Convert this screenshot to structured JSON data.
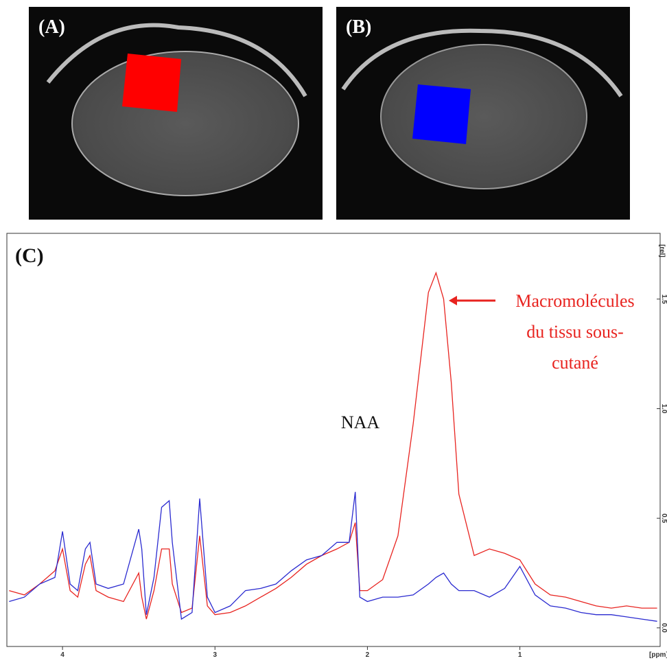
{
  "panels": [
    {
      "label": "(A)",
      "roi_color": "#ff0000"
    },
    {
      "label": "(B)",
      "roi_color": "#0000ff"
    }
  ],
  "chart_data": {
    "type": "line",
    "panel_label": "(C)",
    "xlabel": "[ppm]",
    "ylabel": "[rel]",
    "x": [
      4.35,
      4.25,
      4.15,
      4.05,
      4.0,
      3.95,
      3.9,
      3.85,
      3.82,
      3.78,
      3.7,
      3.6,
      3.5,
      3.48,
      3.45,
      3.4,
      3.35,
      3.3,
      3.28,
      3.22,
      3.15,
      3.1,
      3.05,
      3.0,
      2.9,
      2.8,
      2.7,
      2.6,
      2.5,
      2.4,
      2.3,
      2.2,
      2.12,
      2.08,
      2.05,
      2.0,
      1.9,
      1.8,
      1.7,
      1.6,
      1.55,
      1.5,
      1.45,
      1.4,
      1.3,
      1.2,
      1.1,
      1.0,
      0.9,
      0.8,
      0.7,
      0.6,
      0.5,
      0.4,
      0.3,
      0.2,
      0.1
    ],
    "series": [
      {
        "color": "#e8231f",
        "values": [
          0.17,
          0.15,
          0.2,
          0.26,
          0.36,
          0.17,
          0.14,
          0.29,
          0.33,
          0.17,
          0.14,
          0.12,
          0.25,
          0.14,
          0.04,
          0.17,
          0.36,
          0.36,
          0.2,
          0.07,
          0.09,
          0.42,
          0.1,
          0.06,
          0.07,
          0.1,
          0.14,
          0.18,
          0.23,
          0.29,
          0.33,
          0.36,
          0.39,
          0.48,
          0.17,
          0.17,
          0.22,
          0.42,
          0.93,
          1.53,
          1.62,
          1.5,
          1.12,
          0.61,
          0.33,
          0.36,
          0.34,
          0.31,
          0.2,
          0.15,
          0.14,
          0.12,
          0.1,
          0.09,
          0.1,
          0.09,
          0.09
        ]
      },
      {
        "color": "#2a2ad0",
        "values": [
          0.12,
          0.14,
          0.2,
          0.23,
          0.44,
          0.2,
          0.17,
          0.36,
          0.39,
          0.2,
          0.18,
          0.2,
          0.45,
          0.36,
          0.06,
          0.23,
          0.55,
          0.58,
          0.39,
          0.04,
          0.07,
          0.59,
          0.14,
          0.07,
          0.1,
          0.17,
          0.18,
          0.2,
          0.26,
          0.31,
          0.33,
          0.39,
          0.39,
          0.62,
          0.14,
          0.12,
          0.14,
          0.14,
          0.15,
          0.2,
          0.23,
          0.25,
          0.2,
          0.17,
          0.17,
          0.14,
          0.18,
          0.28,
          0.15,
          0.1,
          0.09,
          0.07,
          0.06,
          0.06,
          0.05,
          0.04,
          0.03
        ]
      }
    ],
    "xlim": [
      4.365,
      0.08
    ],
    "xticks": [
      4,
      3,
      2,
      1
    ],
    "ylim": [
      -0.085,
      1.8
    ],
    "yticks": [
      {
        "value": 0,
        "label": "0.0"
      },
      0.5,
      {
        "value": 1,
        "label": "1.0"
      },
      1.5
    ],
    "annotations": [
      {
        "text": "NAA",
        "color": "#111111"
      },
      {
        "text": "Macromolécules",
        "color": "#e8231f"
      },
      {
        "text": "du tissu sous-",
        "color": "#e8231f"
      },
      {
        "text": "cutané",
        "color": "#e8231f"
      }
    ]
  }
}
